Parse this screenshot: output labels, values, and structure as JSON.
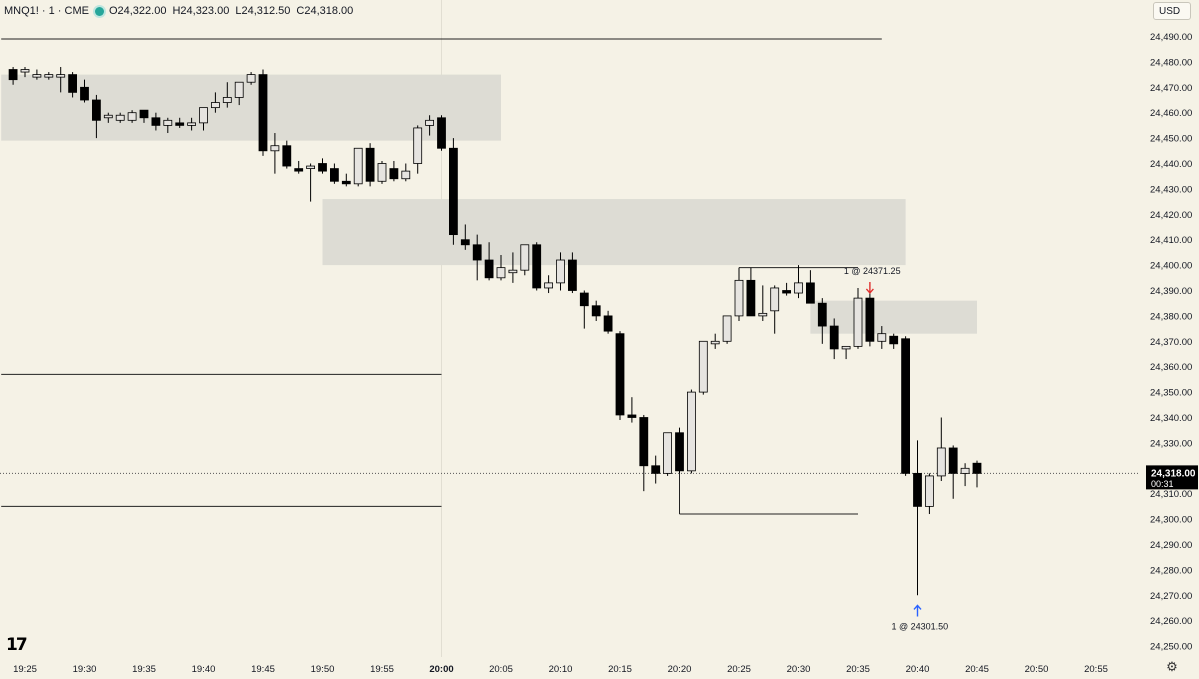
{
  "header": {
    "symbol": "MNQ1! · 1 · CME",
    "open": "O24,322.00",
    "high": "H24,323.00",
    "low": "L24,312.50",
    "close": "C24,318.00"
  },
  "currency_button": "USD",
  "price_label": {
    "price": "24,318.00",
    "countdown": "00:31"
  },
  "logo_text": "17",
  "icons": {
    "settings": "gear-icon",
    "market_status": "green-dot-icon"
  },
  "colors": {
    "background": "#f5f2e6",
    "candle_down": "#000000",
    "candle_up": "#e6e4e0",
    "zone": "#dddcd4",
    "arrow_down": "#e0302e",
    "arrow_up": "#2962ff"
  },
  "chart_data": {
    "type": "candlestick",
    "x_ticks": [
      "19:25",
      "19:30",
      "19:35",
      "19:40",
      "19:45",
      "19:50",
      "19:55",
      "20:00",
      "20:05",
      "20:10",
      "20:15",
      "20:20",
      "20:25",
      "20:30",
      "20:35",
      "20:40",
      "20:45",
      "20:50",
      "20:55"
    ],
    "y_ticks": [
      "24,250.00",
      "24,260.00",
      "24,270.00",
      "24,280.00",
      "24,290.00",
      "24,300.00",
      "24,310.00",
      "24,320.00",
      "24,330.00",
      "24,340.00",
      "24,350.00",
      "24,360.00",
      "24,370.00",
      "24,380.00",
      "24,390.00",
      "24,400.00",
      "24,410.00",
      "24,420.00",
      "24,430.00",
      "24,440.00",
      "24,450.00",
      "24,460.00",
      "24,470.00",
      "24,480.00",
      "24,490.00"
    ],
    "y_range": [
      24245,
      24500
    ],
    "start_time": "19:24",
    "candles": [
      [
        24477,
        24478,
        24471,
        24473
      ],
      [
        24476,
        24478,
        24474,
        24477
      ],
      [
        24474,
        24477,
        24473,
        24475
      ],
      [
        24474,
        24476,
        24473,
        24475
      ],
      [
        24474,
        24478,
        24468,
        24475
      ],
      [
        24475,
        24476,
        24466,
        24468
      ],
      [
        24470,
        24473,
        24464,
        24465
      ],
      [
        24465,
        24467,
        24450,
        24457
      ],
      [
        24458,
        24460,
        24456,
        24459
      ],
      [
        24457,
        24460,
        24456,
        24459
      ],
      [
        24457,
        24461,
        24456,
        24460
      ],
      [
        24461,
        24461,
        24456,
        24458
      ],
      [
        24458,
        24460,
        24453,
        24455
      ],
      [
        24455,
        24458,
        24452,
        24457
      ],
      [
        24456,
        24458,
        24454,
        24455
      ],
      [
        24455,
        24458,
        24453,
        24456
      ],
      [
        24456,
        24462,
        24453,
        24462
      ],
      [
        24462,
        24468,
        24460,
        24464
      ],
      [
        24464,
        24472,
        24462,
        24466
      ],
      [
        24466,
        24472,
        24463,
        24472
      ],
      [
        24472,
        24476,
        24471,
        24475
      ],
      [
        24475,
        24477,
        24443,
        24445
      ],
      [
        24445,
        24452,
        24436,
        24447
      ],
      [
        24447,
        24449,
        24438,
        24439
      ],
      [
        24438,
        24441,
        24436,
        24437
      ],
      [
        24438,
        24440,
        24425,
        24439
      ],
      [
        24440,
        24442,
        24436,
        24437
      ],
      [
        24438,
        24440,
        24432,
        24433
      ],
      [
        24433,
        24436,
        24431,
        24432
      ],
      [
        24432,
        24446,
        24431,
        24446
      ],
      [
        24446,
        24448,
        24431,
        24433
      ],
      [
        24433,
        24441,
        24432,
        24440
      ],
      [
        24438,
        24441,
        24433,
        24434
      ],
      [
        24434,
        24440,
        24433,
        24437
      ],
      [
        24440,
        24455,
        24436,
        24454
      ],
      [
        24455,
        24459,
        24451,
        24457
      ],
      [
        24458,
        24459,
        24445,
        24446
      ],
      [
        24446,
        24450,
        24408,
        24412
      ],
      [
        24410,
        24416,
        24406,
        24408
      ],
      [
        24408,
        24412,
        24394,
        24402
      ],
      [
        24402,
        24409,
        24394,
        24395
      ],
      [
        24395,
        24404,
        24394,
        24399
      ],
      [
        24397,
        24405,
        24393,
        24398
      ],
      [
        24398,
        24408,
        24396,
        24408
      ],
      [
        24408,
        24409,
        24390,
        24391
      ],
      [
        24391,
        24396,
        24389,
        24393
      ],
      [
        24393,
        24405,
        24390,
        24402
      ],
      [
        24402,
        24405,
        24389,
        24390
      ],
      [
        24389,
        24390,
        24375,
        24384
      ],
      [
        24384,
        24386,
        24378,
        24380
      ],
      [
        24380,
        24382,
        24373,
        24374
      ],
      [
        24373,
        24374,
        24339,
        24341
      ],
      [
        24341,
        24348,
        24338,
        24340
      ],
      [
        24340,
        24341,
        24311,
        24321
      ],
      [
        24321,
        24325,
        24314,
        24318
      ],
      [
        24318,
        24333,
        24317,
        24334
      ],
      [
        24334,
        24336,
        24318,
        24319
      ],
      [
        24319,
        24351,
        24318,
        24350
      ],
      [
        24350,
        24369,
        24349,
        24370
      ],
      [
        24369,
        24373,
        24367,
        24370
      ],
      [
        24370,
        24380,
        24369,
        24380
      ],
      [
        24380,
        24399,
        24378,
        24394
      ],
      [
        24394,
        24399,
        24380,
        24380
      ],
      [
        24380,
        24392,
        24378,
        24381
      ],
      [
        24382,
        24392,
        24373,
        24391
      ],
      [
        24390,
        24393,
        24388,
        24389
      ],
      [
        24389,
        24400,
        24387,
        24393
      ],
      [
        24393,
        24398,
        24385,
        24385
      ],
      [
        24385,
        24387,
        24369,
        24376
      ],
      [
        24376,
        24379,
        24363,
        24367
      ],
      [
        24367,
        24368,
        24363,
        24368
      ],
      [
        24368,
        24391,
        24367,
        24387
      ],
      [
        24387,
        24390,
        24368,
        24370
      ],
      [
        24370,
        24376,
        24367,
        24373
      ],
      [
        24372,
        24373,
        24367,
        24369
      ],
      [
        24371,
        24372,
        24317,
        24318
      ],
      [
        24318,
        24331,
        24270,
        24305
      ],
      [
        24305,
        24318,
        24302,
        24317
      ],
      [
        24317,
        24340,
        24315,
        24328
      ],
      [
        24328,
        24329,
        24308,
        24318
      ],
      [
        24318,
        24322,
        24313,
        24320
      ],
      [
        24322,
        24323,
        24312.5,
        24318
      ]
    ],
    "zones": [
      {
        "from": "19:23",
        "to": "20:05",
        "top": 24475,
        "bottom": 24449
      },
      {
        "from": "19:50",
        "to": "20:39",
        "top": 24426,
        "bottom": 24400
      },
      {
        "from": "20:31",
        "to": "20:45",
        "top": 24386,
        "bottom": 24373
      }
    ],
    "horizontal_lines": [
      {
        "from": "19:23",
        "to": "20:37",
        "price": 24489
      },
      {
        "from": "19:23",
        "to": "20:00",
        "price": 24357
      },
      {
        "from": "19:23",
        "to": "20:00",
        "price": 24305
      },
      {
        "from": "20:20",
        "to": "20:35",
        "price": 24302
      },
      {
        "from": "20:25",
        "to": "20:35",
        "price": 24399
      }
    ],
    "vertical_lines": [
      {
        "at": "20:20",
        "from": 24302,
        "to": 24318
      }
    ],
    "current_price": 24318,
    "markers": [
      {
        "type": "sell",
        "at": "20:36",
        "price": 24391,
        "text": "1 @ 24371.25"
      },
      {
        "type": "buy",
        "at": "20:40",
        "price": 24266,
        "text": "1 @ 24301.50"
      }
    ]
  }
}
